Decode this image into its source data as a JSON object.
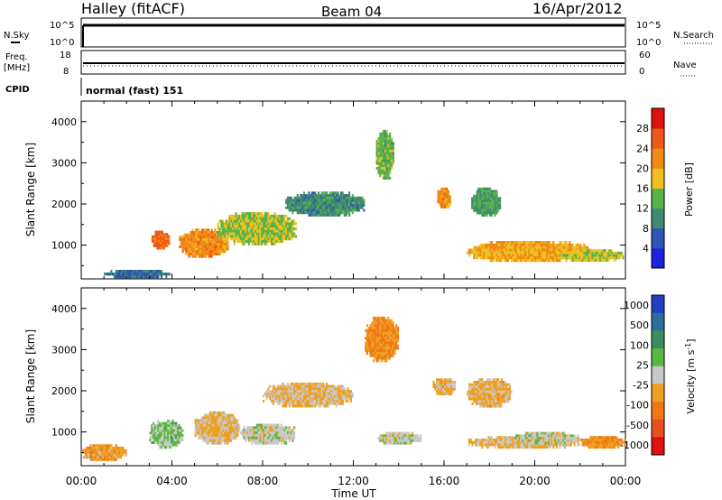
{
  "header": {
    "station": "Halley (fitACF)",
    "beam": "Beam 04",
    "date": "16/Apr/2012"
  },
  "top_panels": {
    "nsky_label": "N.Sky",
    "nsky_ticks": [
      "10^5",
      "10^0"
    ],
    "nsearch_label": "N.Search",
    "nsearch_ticks": [
      "10^5",
      "10^0"
    ],
    "freq_label": "Freq.",
    "freq_unit": "[MHz]",
    "freq_ticks": [
      "18",
      "8"
    ],
    "nave_label": "Nave",
    "nave_ticks": [
      "60",
      "0"
    ],
    "cpid_label": "CPID",
    "cpid_text": "normal (fast) 151"
  },
  "x_axis": {
    "label": "Time UT",
    "ticks": [
      "00:00",
      "04:00",
      "08:00",
      "12:00",
      "16:00",
      "20:00",
      "00:00"
    ]
  },
  "colors": {
    "power_scale": [
      "#1f1fe0",
      "#2f55b5",
      "#3f8a70",
      "#58b34a",
      "#f0c020",
      "#f08a18",
      "#ec5a18",
      "#e01010"
    ],
    "velocity_scale": [
      "#2040c0",
      "#2c6f9a",
      "#3f8a60",
      "#5ab840",
      "#c8c8c8",
      "#f0a020",
      "#f07818",
      "#e85020",
      "#e01010"
    ]
  },
  "chart_data": [
    {
      "type": "heatmap",
      "title": "Power [dB]",
      "xlabel": "Time UT",
      "ylabel": "Slant Range [km]",
      "xlim": [
        0,
        24
      ],
      "ylim": [
        180,
        4500
      ],
      "yticks": [
        1000,
        2000,
        3000,
        4000
      ],
      "colorbar": {
        "label": "Power [dB]",
        "ticks": [
          "28",
          "24",
          "20",
          "16",
          "12",
          "8",
          "4"
        ],
        "range": [
          0,
          32
        ]
      },
      "regions": [
        {
          "t": [
            3.1,
            3.9
          ],
          "r": [
            900,
            1350
          ],
          "v": 25
        },
        {
          "t": [
            4.3,
            6.5
          ],
          "r": [
            700,
            1400
          ],
          "v": 22
        },
        {
          "t": [
            6.0,
            9.5
          ],
          "r": [
            1000,
            1800
          ],
          "v": 16
        },
        {
          "t": [
            9.0,
            12.5
          ],
          "r": [
            1700,
            2300
          ],
          "v": 10
        },
        {
          "t": [
            13.0,
            13.8
          ],
          "r": [
            2600,
            3800
          ],
          "v": 14
        },
        {
          "t": [
            15.7,
            16.3
          ],
          "r": [
            1900,
            2400
          ],
          "v": 22
        },
        {
          "t": [
            17.2,
            18.5
          ],
          "r": [
            1700,
            2400
          ],
          "v": 12
        },
        {
          "t": [
            17.0,
            22.5
          ],
          "r": [
            600,
            1100
          ],
          "v": 20
        },
        {
          "t": [
            21.0,
            24.0
          ],
          "r": [
            600,
            900
          ],
          "v": 17
        },
        {
          "t": [
            1.0,
            4.0
          ],
          "r": [
            200,
            400
          ],
          "v": 8
        }
      ]
    },
    {
      "type": "heatmap",
      "title": "Velocity [m s^-1]",
      "xlabel": "Time UT",
      "ylabel": "Slant Range [km]",
      "xlim": [
        0,
        24
      ],
      "ylim": [
        180,
        4500
      ],
      "yticks": [
        1000,
        2000,
        3000,
        4000
      ],
      "colorbar": {
        "label": "Velocity [m s^-1]",
        "ticks": [
          "1000",
          "500",
          "100",
          "25",
          "-25",
          "-100",
          "-500",
          "-1000"
        ],
        "range": [
          -1200,
          1200
        ]
      },
      "regions": [
        {
          "t": [
            0.0,
            2.0
          ],
          "r": [
            300,
            700
          ],
          "v": -300
        },
        {
          "t": [
            3.0,
            4.5
          ],
          "r": [
            600,
            1300
          ],
          "v": 200
        },
        {
          "t": [
            5.0,
            7.0
          ],
          "r": [
            700,
            1500
          ],
          "v": -150
        },
        {
          "t": [
            7.0,
            9.5
          ],
          "r": [
            700,
            1200
          ],
          "v": 0
        },
        {
          "t": [
            8.0,
            12.0
          ],
          "r": [
            1600,
            2200
          ],
          "v": -150
        },
        {
          "t": [
            12.5,
            14.0
          ],
          "r": [
            2700,
            3800
          ],
          "v": -400
        },
        {
          "t": [
            13.0,
            15.0
          ],
          "r": [
            700,
            1000
          ],
          "v": 0
        },
        {
          "t": [
            15.5,
            16.5
          ],
          "r": [
            1900,
            2300
          ],
          "v": -200
        },
        {
          "t": [
            17.0,
            19.0
          ],
          "r": [
            1600,
            2300
          ],
          "v": -200
        },
        {
          "t": [
            17.0,
            22.0
          ],
          "r": [
            600,
            900
          ],
          "v": -150
        },
        {
          "t": [
            19.0,
            22.0
          ],
          "r": [
            700,
            1000
          ],
          "v": 0
        },
        {
          "t": [
            22.0,
            24.0
          ],
          "r": [
            600,
            900
          ],
          "v": -400
        }
      ]
    }
  ]
}
